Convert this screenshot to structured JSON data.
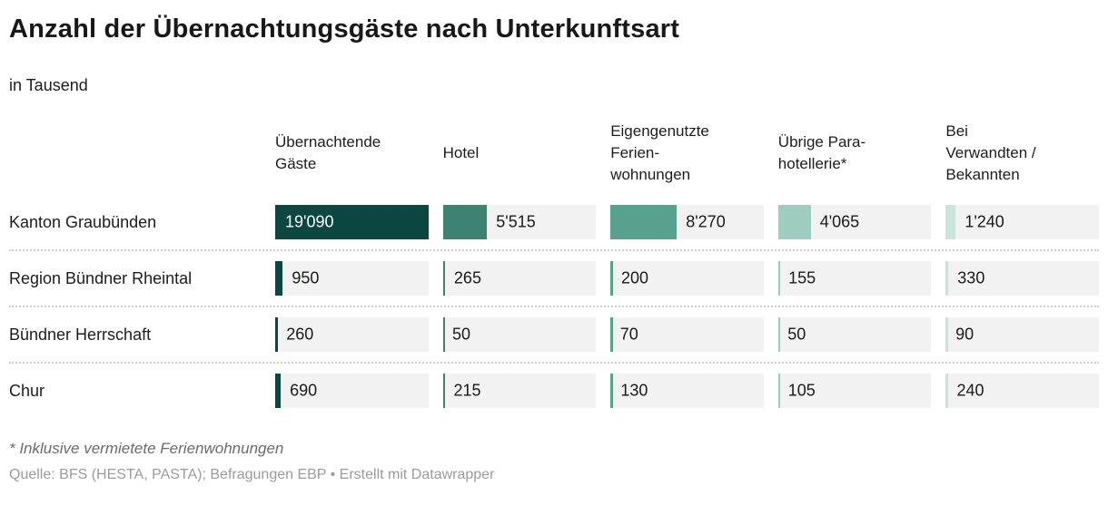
{
  "title": "Anzahl der Übernachtungsgäste nach Unterkunftsart",
  "subtitle": "in Tausend",
  "footnote": "* Inklusive vermietete Ferienwohnungen",
  "source": "Quelle: BFS (HESTA, PASTA); Befragungen EBP • Erstellt mit Datawrapper",
  "colors": {
    "cell_background": "#f2f2f2",
    "separator": "#cccccc",
    "full_bar_text": "#ffffff",
    "text": "#1d1d1d"
  },
  "chart_data": {
    "type": "bar",
    "title": "Anzahl der Übernachtungsgäste nach Unterkunftsart",
    "subtitle": "in Tausend",
    "unit": "Tausend",
    "max_value": 19090,
    "legend_position": "none",
    "grid": false,
    "columns": [
      "Übernachtende\nGäste",
      "Hotel",
      "Eigengenutzte\nFerien-\nwohnungen",
      "Übrige Para-\nhotellerie*",
      "Bei\nVerwandten /\nBekannten"
    ],
    "column_colors": [
      "#0c4641",
      "#3e8274",
      "#57a18e",
      "#9fccc0",
      "#c9e4da"
    ],
    "rows": [
      {
        "label": "Kanton Graubünden",
        "values": [
          19090,
          5515,
          8270,
          4065,
          1240
        ],
        "value_labels": [
          "19'090",
          "5'515",
          "8'270",
          "4'065",
          "1'240"
        ]
      },
      {
        "label": "Region Bündner Rheintal",
        "values": [
          950,
          265,
          200,
          155,
          330
        ],
        "value_labels": [
          "950",
          "265",
          "200",
          "155",
          "330"
        ]
      },
      {
        "label": "Bündner Herrschaft",
        "values": [
          260,
          50,
          70,
          50,
          90
        ],
        "value_labels": [
          "260",
          "50",
          "70",
          "50",
          "90"
        ]
      },
      {
        "label": "Chur",
        "values": [
          690,
          215,
          130,
          105,
          240
        ],
        "value_labels": [
          "690",
          "215",
          "130",
          "105",
          "240"
        ]
      }
    ]
  }
}
